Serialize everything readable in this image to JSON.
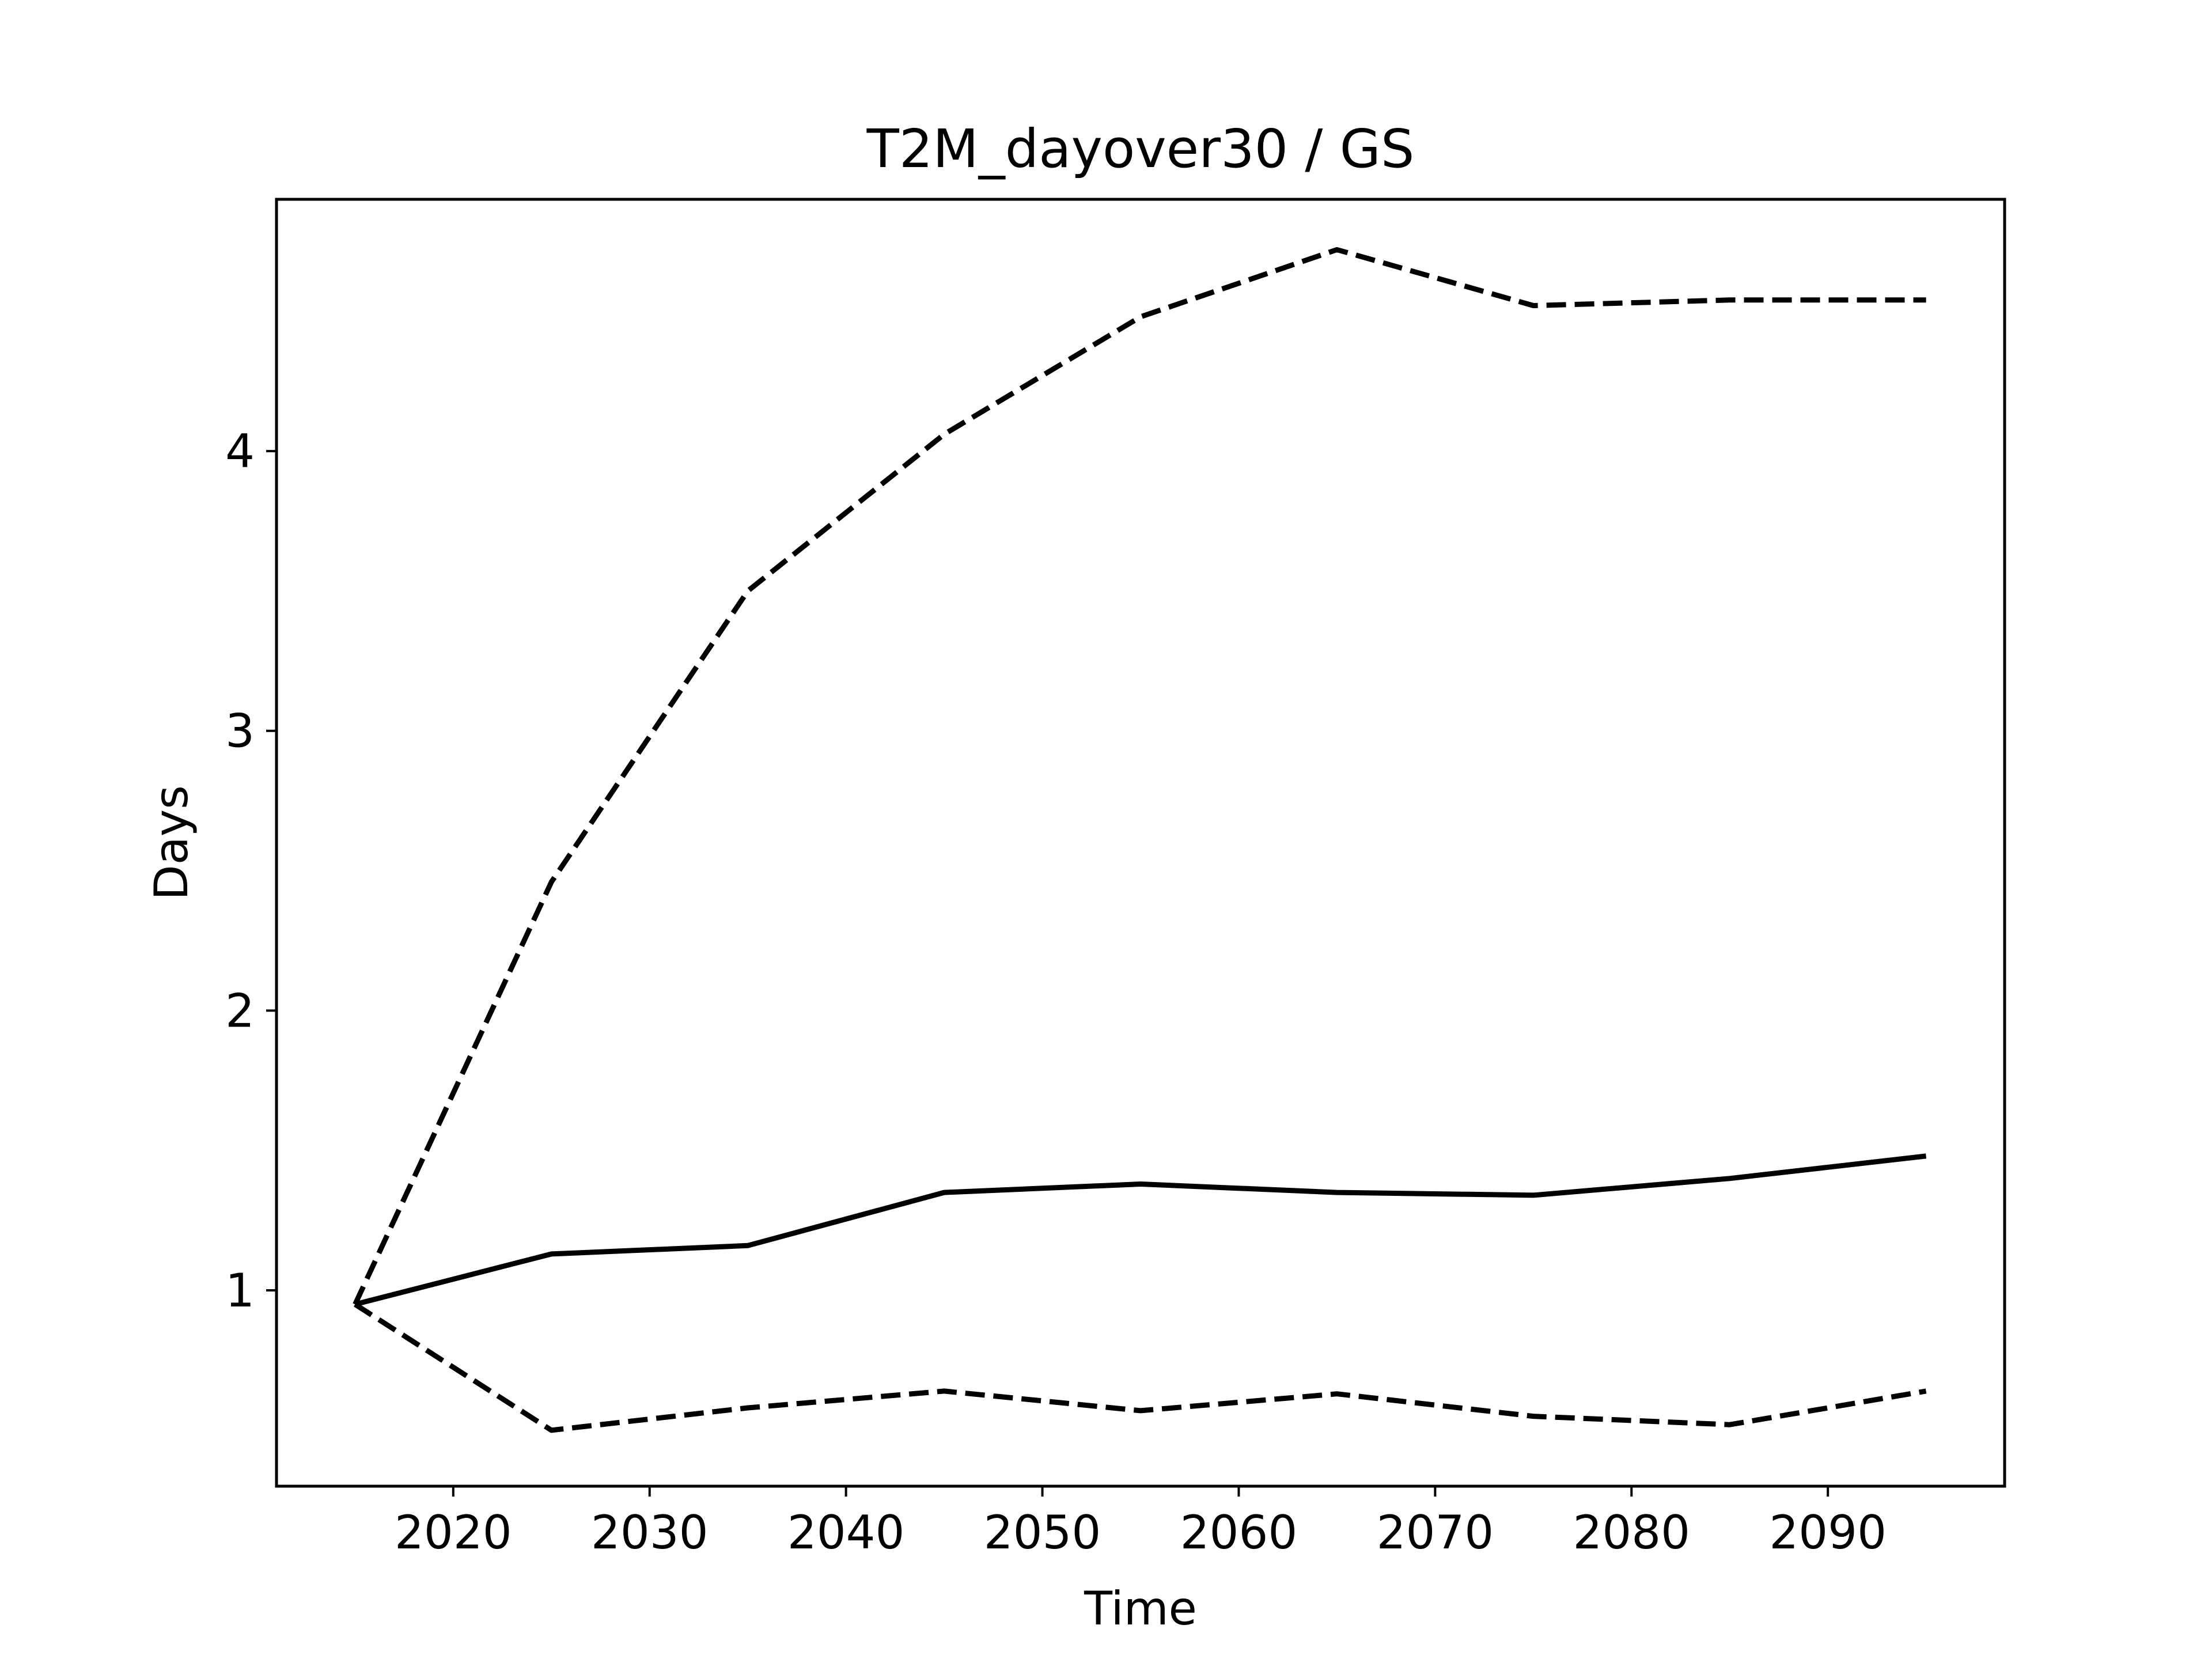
{
  "chart_data": {
    "type": "line",
    "title": "T2M_dayover30 / GS",
    "xlabel": "Time",
    "ylabel": "Days",
    "xlim": [
      2011,
      2099
    ],
    "ylim": [
      0.3,
      4.9
    ],
    "grid": false,
    "x": [
      2015,
      2025,
      2035,
      2045,
      2055,
      2065,
      2075,
      2085,
      2095
    ],
    "series": [
      {
        "style": "solid",
        "color": "#000000",
        "values": [
          0.95,
          1.13,
          1.16,
          1.35,
          1.38,
          1.35,
          1.34,
          1.4,
          1.48
        ]
      },
      {
        "style": "dashed",
        "color": "#000000",
        "values": [
          0.95,
          2.46,
          3.5,
          4.06,
          4.48,
          4.72,
          4.52,
          4.54,
          4.54
        ]
      },
      {
        "style": "dashed",
        "color": "#000000",
        "values": [
          0.95,
          0.5,
          0.58,
          0.64,
          0.57,
          0.63,
          0.55,
          0.52,
          0.64
        ]
      }
    ],
    "xticks": [
      2020,
      2030,
      2040,
      2050,
      2060,
      2070,
      2080,
      2090
    ],
    "yticks": [
      1,
      2,
      3,
      4
    ]
  }
}
